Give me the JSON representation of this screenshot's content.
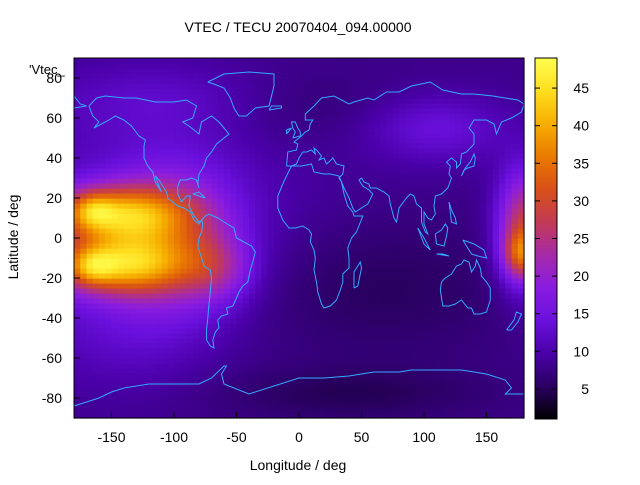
{
  "title": "VTEC / TECU 20070404_094.00000",
  "xlabel": "Longitude / deg",
  "ylabel": "Latitude / deg",
  "legend_key": "'Vtec_",
  "x_ticks": [
    -150,
    -100,
    -50,
    0,
    50,
    100,
    150
  ],
  "y_ticks": [
    -80,
    -60,
    -40,
    -20,
    0,
    20,
    40,
    60,
    80
  ],
  "colorbar_ticks": [
    5,
    10,
    15,
    20,
    25,
    30,
    35,
    40,
    45
  ],
  "x_range": [
    -180,
    180
  ],
  "y_range": [
    -90,
    90
  ],
  "color_range": [
    1,
    49
  ],
  "colorbar_palette": [
    "#000000",
    "#2a0062",
    "#4a00a8",
    "#6a10dd",
    "#8a1ce0",
    "#a62aa8",
    "#c23a55",
    "#d85018",
    "#ea7a00",
    "#f6ae00",
    "#ffde20",
    "#ffff50"
  ],
  "colors": {
    "coastline": "#33aaff",
    "background": "#ffffff"
  },
  "chart_data": {
    "type": "heatmap",
    "title": "VTEC / TECU 20070404_094.00000",
    "xlabel": "Longitude / deg",
    "ylabel": "Latitude / deg",
    "xlim": [
      -180,
      180
    ],
    "ylim": [
      -90,
      90
    ],
    "zlim": [
      1,
      49
    ],
    "colorbar_label": "",
    "grid": false,
    "description_of_field": "Vertical total electron content map; high values (40-47 TECU) in two lobes centred near 165W at 15N and 15S, extending over the Pacific; moderate values (15-25) near 180E; low values (2-8) over Asia, Europe, Africa and polar regions.",
    "peaks": [
      {
        "lon": -160,
        "lat": 13,
        "value": 47
      },
      {
        "lon": -160,
        "lat": -13,
        "value": 47
      },
      {
        "lon": -110,
        "lat": 0,
        "value": 35
      },
      {
        "lon": 175,
        "lat": -8,
        "value": 30
      },
      {
        "lon": 175,
        "lat": 18,
        "value": 25
      }
    ]
  }
}
